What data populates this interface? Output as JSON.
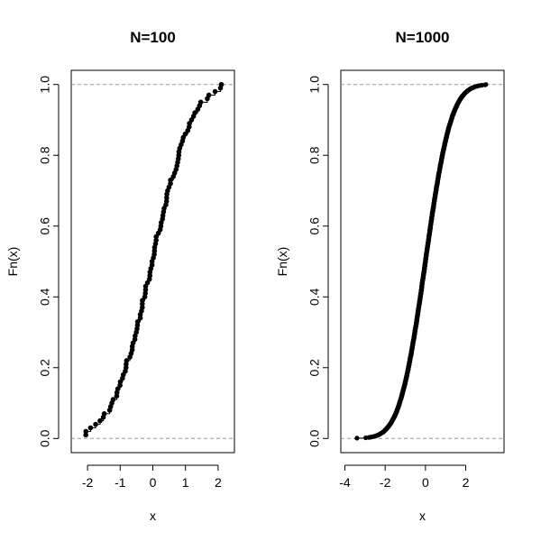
{
  "chart_data": [
    {
      "type": "step",
      "title": "N=100",
      "xlabel": "x",
      "ylabel": "Fn(x)",
      "xlim": [
        -2.5,
        2.5
      ],
      "ylim": [
        -0.04,
        1.04
      ],
      "xticks": [
        -2,
        -1,
        0,
        1,
        2
      ],
      "xtick_labels": [
        "-2",
        "-1",
        "0",
        "1",
        "2"
      ],
      "yticks": [
        0.0,
        0.2,
        0.4,
        0.6,
        0.8,
        1.0
      ],
      "ytick_labels": [
        "0.0",
        "0.2",
        "0.4",
        "0.6",
        "0.8",
        "1.0"
      ],
      "reference_lines": [
        0,
        1
      ],
      "n": 100,
      "data_min": -2.05,
      "data_max": 2.1,
      "points_note": "empirical CDF of 100 samples, points from x=-2.05 (Fn=0.01) to x=2.1 (Fn=1.0)"
    },
    {
      "type": "step",
      "title": "N=1000",
      "xlabel": "x",
      "ylabel": "Fn(x)",
      "xlim": [
        -4.2,
        3.9
      ],
      "ylim": [
        -0.04,
        1.04
      ],
      "xticks": [
        -4,
        -2,
        0,
        2
      ],
      "xtick_labels": [
        "-4",
        "-2",
        "0",
        "2"
      ],
      "yticks": [
        0.0,
        0.2,
        0.4,
        0.6,
        0.8,
        1.0
      ],
      "ytick_labels": [
        "0.0",
        "0.2",
        "0.4",
        "0.6",
        "0.8",
        "1.0"
      ],
      "reference_lines": [
        0,
        1
      ],
      "n": 1000,
      "data_min": -3.4,
      "data_max": 3.0,
      "points_note": "empirical CDF of 1000 samples, points from x=-3.4 (Fn=0.001) to x=3.0 (Fn=1.0)"
    }
  ]
}
